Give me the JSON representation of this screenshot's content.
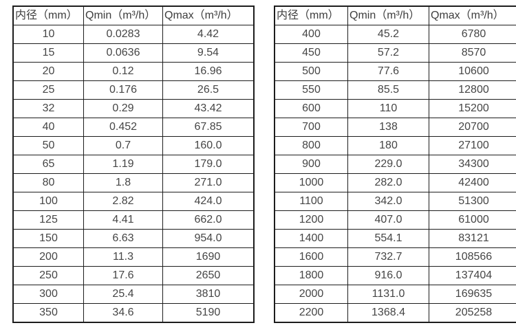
{
  "colors": {
    "border": "#1c1c1c",
    "text": "#454545",
    "background": "#ffffff"
  },
  "tables": [
    {
      "name": "flow-spec-table-small-diameters",
      "headers": [
        "内径（mm）",
        "Qmin（m³/h）",
        "Qmax（m³/h）"
      ],
      "rows": [
        [
          "10",
          "0.0283",
          "4.42"
        ],
        [
          "15",
          "0.0636",
          "9.54"
        ],
        [
          "20",
          "0.12",
          "16.96"
        ],
        [
          "25",
          "0.176",
          "26.5"
        ],
        [
          "32",
          "0.29",
          "43.42"
        ],
        [
          "40",
          "0.452",
          "67.85"
        ],
        [
          "50",
          "0.7",
          "160.0"
        ],
        [
          "65",
          "1.19",
          "179.0"
        ],
        [
          "80",
          "1.8",
          "271.0"
        ],
        [
          "100",
          "2.82",
          "424.0"
        ],
        [
          "125",
          "4.41",
          "662.0"
        ],
        [
          "150",
          "6.63",
          "954.0"
        ],
        [
          "200",
          "11.3",
          "1690"
        ],
        [
          "250",
          "17.6",
          "2650"
        ],
        [
          "300",
          "25.4",
          "3810"
        ],
        [
          "350",
          "34.6",
          "5190"
        ]
      ]
    },
    {
      "name": "flow-spec-table-large-diameters",
      "headers": [
        "内径（mm）",
        "Qmin（m³/h）",
        "Qmax（m³/h）"
      ],
      "rows": [
        [
          "400",
          "45.2",
          "6780"
        ],
        [
          "450",
          "57.2",
          "8570"
        ],
        [
          "500",
          "77.6",
          "10600"
        ],
        [
          "550",
          "85.5",
          "12800"
        ],
        [
          "600",
          "110",
          "15200"
        ],
        [
          "700",
          "138",
          "20700"
        ],
        [
          "800",
          "180",
          "27100"
        ],
        [
          "900",
          "229.0",
          "34300"
        ],
        [
          "1000",
          "282.0",
          "42400"
        ],
        [
          "1100",
          "342.0",
          "51300"
        ],
        [
          "1200",
          "407.0",
          "61000"
        ],
        [
          "1400",
          "554.1",
          "83121"
        ],
        [
          "1600",
          "732.7",
          "108566"
        ],
        [
          "1800",
          "916.0",
          "137404"
        ],
        [
          "2000",
          "1131.0",
          "169635"
        ],
        [
          "2200",
          "1368.4",
          "205258"
        ]
      ]
    }
  ]
}
